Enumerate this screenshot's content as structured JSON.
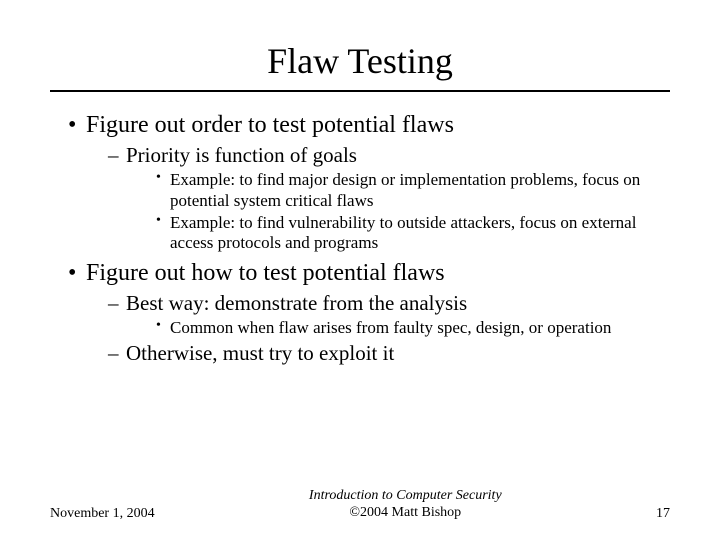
{
  "title": "Flaw Testing",
  "bullets": {
    "b1": "Figure out order to test potential flaws",
    "b1_1": "Priority is function of goals",
    "b1_1_1": "Example: to find major design or implementation problems, focus on potential system critical flaws",
    "b1_1_2": "Example: to find vulnerability to outside attackers, focus on external access protocols and programs",
    "b2": "Figure out how to test potential flaws",
    "b2_1": "Best way: demonstrate from the analysis",
    "b2_1_1": "Common when flaw arises from faulty spec, design, or operation",
    "b2_2": "Otherwise, must try to exploit it"
  },
  "footer": {
    "date": "November 1, 2004",
    "center1": "Introduction to Computer Security",
    "center2": "©2004 Matt Bishop",
    "page": "17"
  }
}
